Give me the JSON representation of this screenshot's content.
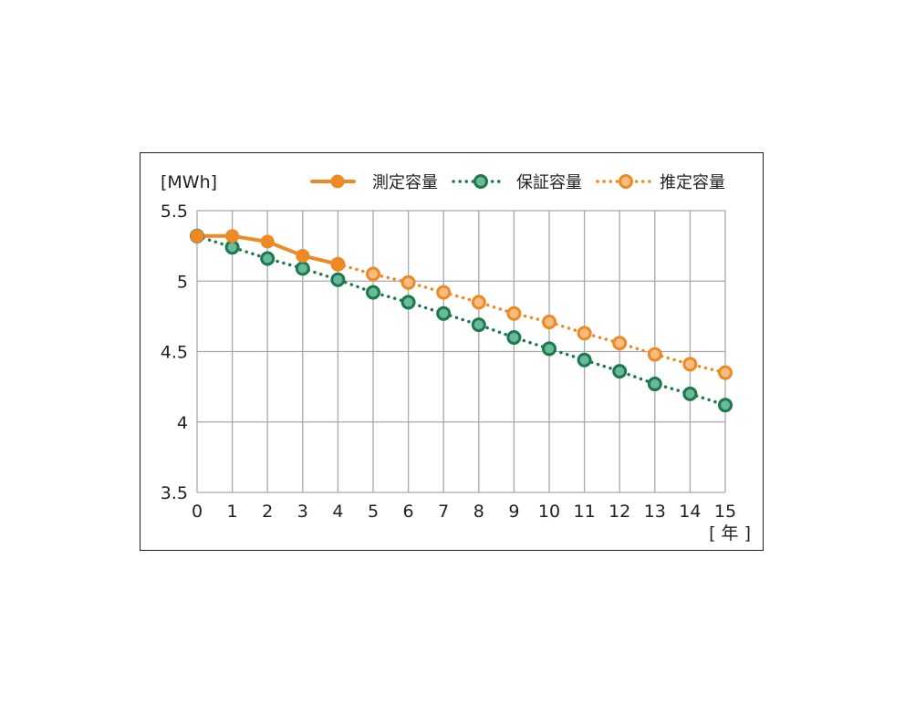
{
  "chart_data": {
    "type": "line",
    "y_unit_label": "[MWh]",
    "x_unit_label": "[ 年 ]",
    "x": [
      0,
      1,
      2,
      3,
      4,
      5,
      6,
      7,
      8,
      9,
      10,
      11,
      12,
      13,
      14,
      15
    ],
    "x_tick_labels": [
      "0",
      "1",
      "2",
      "3",
      "4",
      "5",
      "6",
      "7",
      "8",
      "9",
      "10",
      "11",
      "12",
      "13",
      "14",
      "15"
    ],
    "ylim": [
      3.5,
      5.5
    ],
    "y_ticks": [
      3.5,
      4,
      4.5,
      5,
      5.5
    ],
    "y_tick_labels": [
      "3.5",
      "4",
      "4.5",
      "5",
      "5.5"
    ],
    "grid": true,
    "legend_position": "top",
    "series": [
      {
        "name": "測定容量",
        "style": "solid",
        "marker": "filled-circle",
        "color": "#ee8a25",
        "x": [
          0,
          1,
          2,
          3,
          4
        ],
        "values": [
          5.32,
          5.32,
          5.28,
          5.18,
          5.12
        ]
      },
      {
        "name": "保証容量",
        "style": "dotted",
        "marker": "outlined-circle",
        "color": "#1a7a4c",
        "fill": "#6cb89a",
        "x": [
          0,
          1,
          2,
          3,
          4,
          5,
          6,
          7,
          8,
          9,
          10,
          11,
          12,
          13,
          14,
          15
        ],
        "values": [
          5.32,
          5.24,
          5.16,
          5.09,
          5.01,
          4.92,
          4.85,
          4.77,
          4.69,
          4.6,
          4.52,
          4.44,
          4.36,
          4.27,
          4.2,
          4.12
        ]
      },
      {
        "name": "推定容量",
        "style": "dotted",
        "marker": "outlined-circle",
        "color": "#ee8a25",
        "fill": "#f5bd80",
        "x": [
          4,
          5,
          6,
          7,
          8,
          9,
          10,
          11,
          12,
          13,
          14,
          15
        ],
        "values": [
          5.12,
          5.05,
          4.99,
          4.92,
          4.85,
          4.77,
          4.71,
          4.63,
          4.56,
          4.48,
          4.41,
          4.35
        ]
      }
    ]
  }
}
